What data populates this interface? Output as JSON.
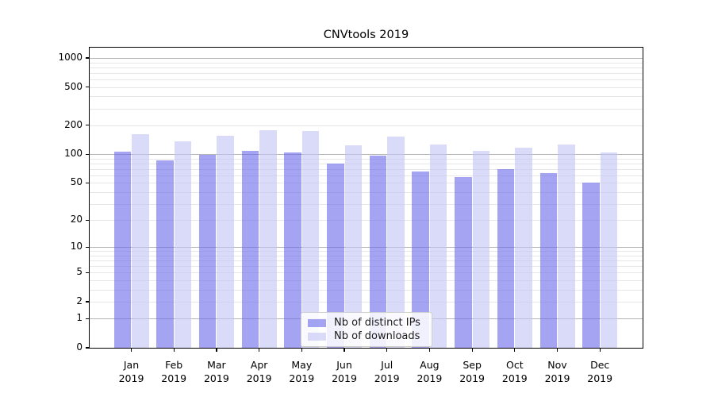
{
  "chart_data": {
    "type": "bar",
    "title": "CNVtools 2019",
    "year": "2019",
    "categories": [
      "Jan",
      "Feb",
      "Mar",
      "Apr",
      "May",
      "Jun",
      "Jul",
      "Aug",
      "Sep",
      "Oct",
      "Nov",
      "Dec"
    ],
    "series": [
      {
        "name": "Nb of distinct IPs",
        "color": "rgba(108,108,235,0.62)",
        "color_hex_on_white": "#a4a4f2",
        "values": [
          107,
          87,
          98,
          108,
          104,
          80,
          96,
          66,
          58,
          70,
          64,
          50
        ]
      },
      {
        "name": "Nb of downloads",
        "color": "rgba(196,196,246,0.62)",
        "color_hex_on_white": "#dadaf9",
        "values": [
          161,
          137,
          156,
          177,
          174,
          125,
          154,
          127,
          108,
          117,
          126,
          105
        ]
      }
    ],
    "y_scale": "log10(value+1)",
    "y_tick_labels": [
      0,
      1,
      2,
      5,
      10,
      20,
      50,
      100,
      200,
      500,
      1000
    ],
    "ylim": [
      0,
      1285
    ],
    "grid": "horizontal major and minor",
    "legend_position": "lower center"
  }
}
